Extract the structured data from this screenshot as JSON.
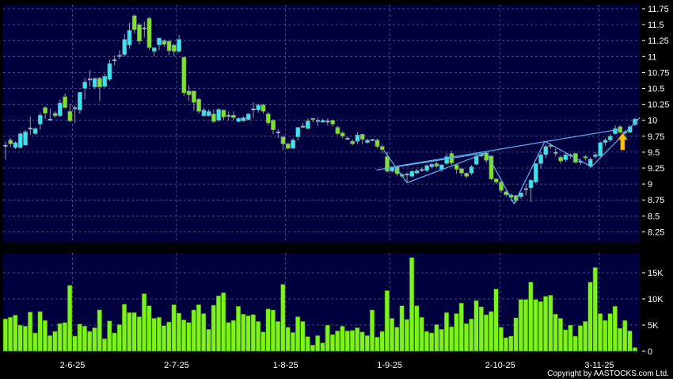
{
  "chart_data": [
    {
      "type": "candlestick",
      "title": "",
      "ylim": [
        8.1,
        11.8
      ],
      "y_ticks": [
        "11.75",
        "11.5",
        "11.25",
        "11",
        "10.75",
        "10.5",
        "10.25",
        "10",
        "9.75",
        "9.5",
        "9.25",
        "9",
        "8.75",
        "8.5",
        "8.25"
      ],
      "x_ticks": [
        {
          "label": "2-6-25",
          "index": 13.5
        },
        {
          "label": "2-7-25",
          "index": 34.5
        },
        {
          "label": "1-8-25",
          "index": 56.5
        },
        {
          "label": "1-9-25",
          "index": 77.5
        },
        {
          "label": "2-10-25",
          "index": 99.8
        },
        {
          "label": "3-11-25",
          "index": 119.8
        }
      ],
      "grid": true,
      "colors": {
        "up": "#38e4f2",
        "down": "#7ee22a",
        "background": "#00003f",
        "trendline": "#5ab4ec",
        "arrow": "#f5c518"
      },
      "ohlc_fields": [
        "open",
        "high",
        "low",
        "close"
      ],
      "ohlc": [
        [
          9.6,
          9.66,
          9.38,
          9.6
        ],
        [
          9.69,
          9.72,
          9.58,
          9.63
        ],
        [
          9.57,
          9.67,
          9.55,
          9.65
        ],
        [
          9.57,
          9.82,
          9.55,
          9.79
        ],
        [
          9.61,
          9.85,
          9.6,
          9.82
        ],
        [
          9.87,
          10.06,
          9.77,
          9.87
        ],
        [
          9.79,
          9.89,
          9.77,
          9.87
        ],
        [
          9.94,
          10.12,
          9.85,
          10.08
        ],
        [
          10.2,
          10.22,
          10.02,
          10.11
        ],
        [
          10.01,
          10.18,
          9.99,
          10.01
        ],
        [
          10.11,
          10.14,
          10.04,
          10.07
        ],
        [
          10.07,
          10.33,
          10.05,
          10.27
        ],
        [
          10.37,
          10.42,
          10.18,
          10.2
        ],
        [
          10.14,
          10.26,
          9.97,
          9.99
        ],
        [
          10.19,
          10.23,
          9.96,
          10.19
        ],
        [
          10.16,
          10.44,
          10.1,
          10.44
        ],
        [
          10.5,
          10.66,
          10.33,
          10.6
        ],
        [
          10.64,
          10.78,
          10.53,
          10.64
        ],
        [
          10.52,
          10.66,
          10.49,
          10.66
        ],
        [
          10.66,
          10.68,
          10.3,
          10.52
        ],
        [
          10.53,
          10.73,
          10.51,
          10.69
        ],
        [
          10.64,
          10.95,
          10.62,
          10.89
        ],
        [
          10.94,
          11.02,
          10.86,
          10.94
        ],
        [
          11.01,
          11.1,
          10.96,
          11.01
        ],
        [
          11.03,
          11.35,
          11.0,
          11.27
        ],
        [
          11.18,
          11.53,
          11.12,
          11.41
        ],
        [
          11.64,
          11.66,
          11.36,
          11.42
        ],
        [
          11.5,
          11.53,
          11.19,
          11.24
        ],
        [
          11.44,
          11.55,
          11.3,
          11.44
        ],
        [
          11.6,
          11.62,
          11.1,
          11.14
        ],
        [
          11.08,
          11.14,
          11.0,
          11.14
        ],
        [
          11.18,
          11.29,
          11.1,
          11.29
        ],
        [
          11.25,
          11.27,
          11.15,
          11.19
        ],
        [
          11.24,
          11.26,
          11.02,
          11.09
        ],
        [
          11.18,
          11.2,
          11.0,
          11.08
        ],
        [
          11.08,
          11.34,
          11.06,
          11.27
        ],
        [
          10.99,
          10.99,
          10.38,
          10.43
        ],
        [
          10.46,
          10.55,
          10.3,
          10.4
        ],
        [
          10.46,
          10.46,
          10.15,
          10.28
        ],
        [
          10.33,
          10.35,
          10.1,
          10.14
        ],
        [
          10.07,
          10.2,
          10.05,
          10.16
        ],
        [
          10.07,
          10.17,
          10.06,
          10.14
        ],
        [
          10.1,
          10.17,
          9.96,
          9.98
        ],
        [
          10.0,
          10.19,
          9.98,
          10.17
        ],
        [
          10.16,
          10.17,
          10.01,
          10.05
        ],
        [
          10.07,
          10.14,
          10.0,
          10.07
        ],
        [
          10.08,
          10.14,
          10.0,
          10.04
        ],
        [
          9.98,
          10.05,
          9.97,
          10.03
        ],
        [
          9.99,
          10.06,
          9.98,
          10.04
        ],
        [
          10.01,
          10.11,
          10.0,
          10.1
        ],
        [
          10.17,
          10.28,
          10.03,
          10.17
        ],
        [
          10.16,
          10.26,
          10.12,
          10.24
        ],
        [
          10.24,
          10.26,
          10.1,
          10.14
        ],
        [
          10.1,
          10.13,
          9.92,
          9.96
        ],
        [
          10.0,
          10.02,
          9.78,
          9.85
        ],
        [
          9.81,
          9.86,
          9.72,
          9.81
        ],
        [
          9.74,
          9.76,
          9.53,
          9.63
        ],
        [
          9.63,
          9.65,
          9.54,
          9.56
        ],
        [
          9.56,
          9.72,
          9.55,
          9.69
        ],
        [
          9.74,
          9.89,
          9.68,
          9.89
        ],
        [
          9.9,
          9.96,
          9.88,
          9.9
        ],
        [
          9.87,
          10.03,
          9.86,
          9.99
        ],
        [
          10.03,
          10.04,
          9.97,
          10.01
        ],
        [
          9.99,
          10.04,
          9.91,
          9.99
        ],
        [
          9.97,
          10.02,
          9.96,
          10.0
        ],
        [
          9.98,
          10.03,
          9.92,
          9.98
        ],
        [
          10.0,
          10.01,
          9.9,
          9.94
        ],
        [
          9.89,
          9.91,
          9.77,
          9.79
        ],
        [
          9.8,
          9.83,
          9.72,
          9.75
        ],
        [
          9.71,
          9.75,
          9.69,
          9.71
        ],
        [
          9.67,
          9.7,
          9.61,
          9.63
        ],
        [
          9.67,
          9.81,
          9.63,
          9.77
        ],
        [
          9.78,
          9.79,
          9.62,
          9.7
        ],
        [
          9.65,
          9.71,
          9.63,
          9.69
        ],
        [
          9.69,
          9.71,
          9.67,
          9.69
        ],
        [
          9.69,
          9.72,
          9.56,
          9.59
        ],
        [
          9.59,
          9.62,
          9.48,
          9.54
        ],
        [
          9.43,
          9.51,
          9.18,
          9.2
        ],
        [
          9.2,
          9.28,
          9.18,
          9.27
        ],
        [
          9.27,
          9.29,
          9.13,
          9.16
        ],
        [
          9.15,
          9.17,
          9.1,
          9.12
        ],
        [
          9.15,
          9.18,
          9.02,
          9.15
        ],
        [
          9.12,
          9.22,
          9.1,
          9.2
        ],
        [
          9.17,
          9.24,
          9.15,
          9.21
        ],
        [
          9.22,
          9.26,
          9.19,
          9.22
        ],
        [
          9.21,
          9.31,
          9.19,
          9.29
        ],
        [
          9.27,
          9.33,
          9.25,
          9.31
        ],
        [
          9.32,
          9.35,
          9.26,
          9.28
        ],
        [
          9.23,
          9.31,
          9.19,
          9.3
        ],
        [
          9.32,
          9.48,
          9.3,
          9.43
        ],
        [
          9.48,
          9.52,
          9.3,
          9.33
        ],
        [
          9.3,
          9.31,
          9.16,
          9.23
        ],
        [
          9.24,
          9.26,
          9.12,
          9.17
        ],
        [
          9.17,
          9.18,
          9.09,
          9.12
        ],
        [
          9.17,
          9.3,
          9.14,
          9.27
        ],
        [
          9.31,
          9.46,
          9.29,
          9.44
        ],
        [
          9.45,
          9.5,
          9.42,
          9.45
        ],
        [
          9.49,
          9.52,
          9.33,
          9.37
        ],
        [
          9.44,
          9.45,
          9.06,
          9.08
        ],
        [
          9.08,
          9.09,
          9.0,
          9.03
        ],
        [
          9.03,
          9.04,
          8.86,
          8.9
        ],
        [
          8.88,
          8.9,
          8.8,
          8.83
        ],
        [
          8.83,
          8.85,
          8.73,
          8.79
        ],
        [
          8.82,
          8.83,
          8.7,
          8.74
        ],
        [
          8.8,
          8.88,
          8.77,
          8.86
        ],
        [
          8.92,
          9.0,
          8.82,
          8.92
        ],
        [
          8.94,
          9.08,
          8.72,
          9.06
        ],
        [
          9.03,
          9.33,
          9.01,
          9.32
        ],
        [
          9.32,
          9.5,
          9.24,
          9.46
        ],
        [
          9.46,
          9.62,
          9.4,
          9.59
        ],
        [
          9.61,
          9.64,
          9.55,
          9.59
        ],
        [
          9.49,
          9.56,
          9.43,
          9.49
        ],
        [
          9.42,
          9.45,
          9.32,
          9.36
        ],
        [
          9.38,
          9.48,
          9.35,
          9.46
        ],
        [
          9.45,
          9.48,
          9.4,
          9.45
        ],
        [
          9.48,
          9.49,
          9.32,
          9.34
        ],
        [
          9.35,
          9.4,
          9.3,
          9.35
        ],
        [
          9.43,
          9.45,
          9.37,
          9.41
        ],
        [
          9.28,
          9.42,
          9.25,
          9.39
        ],
        [
          9.43,
          9.5,
          9.4,
          9.46
        ],
        [
          9.44,
          9.67,
          9.4,
          9.65
        ],
        [
          9.65,
          9.72,
          9.6,
          9.69
        ],
        [
          9.69,
          9.78,
          9.66,
          9.75
        ],
        [
          9.79,
          9.92,
          9.77,
          9.87
        ],
        [
          9.9,
          9.92,
          9.79,
          9.81
        ],
        [
          9.81,
          9.85,
          9.77,
          9.81
        ],
        [
          9.81,
          9.92,
          9.8,
          9.9
        ],
        [
          9.93,
          10.04,
          9.91,
          10.02
        ]
      ],
      "trendlines": [
        {
          "from": {
            "index": 74.8,
            "price": 9.22
          },
          "to": {
            "index": 97,
            "price": 9.49
          }
        },
        {
          "from": {
            "index": 79,
            "price": 9.28
          },
          "to": {
            "index": 124,
            "price": 9.86
          }
        },
        {
          "zigzag": [
            {
              "index": 76.3,
              "price": 9.53
            },
            {
              "index": 81,
              "price": 9.02
            },
            {
              "index": 97,
              "price": 9.49
            },
            {
              "index": 102.6,
              "price": 8.69
            },
            {
              "index": 108.8,
              "price": 9.67
            },
            {
              "index": 118.2,
              "price": 9.27
            },
            {
              "index": 128,
              "price": 10.04
            }
          ]
        }
      ],
      "annotation": {
        "type": "up-arrow",
        "index": 124.5,
        "price": 9.66
      }
    },
    {
      "type": "bar",
      "unit": "K",
      "ylim": [
        0,
        19
      ],
      "y_ticks": [
        {
          "label": "15K",
          "value": 15
        },
        {
          "label": "10K",
          "value": 10
        },
        {
          "label": "5K",
          "value": 5
        },
        {
          "label": "0",
          "value": 0
        }
      ],
      "grid": true,
      "colors": {
        "bar": "#7ef21c",
        "background": "#00003f"
      },
      "values": [
        6.2,
        6.5,
        6.9,
        5.0,
        4.8,
        7.5,
        3.5,
        7.6,
        5.9,
        3.0,
        3.8,
        5.3,
        5.5,
        12.6,
        2.9,
        5.2,
        4.8,
        3.8,
        4.5,
        7.9,
        2.4,
        5.8,
        3.5,
        5.1,
        9.0,
        7.4,
        7.4,
        6.6,
        11.0,
        8.7,
        6.3,
        6.5,
        4.9,
        5.6,
        8.9,
        7.3,
        6.0,
        5.5,
        7.9,
        8.9,
        7.2,
        4.2,
        8.8,
        10.6,
        11.2,
        5.5,
        5.9,
        8.6,
        7.1,
        6.8,
        7.0,
        5.7,
        3.7,
        8.1,
        7.9,
        5.7,
        12.8,
        4.6,
        3.6,
        6.6,
        5.7,
        2.8,
        1.2,
        3.0,
        1.6,
        5.0,
        3.2,
        3.9,
        4.8,
        3.9,
        4.0,
        4.5,
        3.7,
        3.0,
        7.9,
        2.7,
        3.8,
        11.6,
        6.3,
        4.6,
        8.7,
        6.1,
        17.9,
        8.7,
        6.5,
        3.8,
        3.5,
        5.1,
        4.2,
        7.4,
        4.7,
        7.2,
        9.2,
        5.3,
        6.2,
        9.7,
        8.5,
        7.0,
        7.6,
        11.9,
        4.6,
        2.6,
        2.9,
        6.4,
        9.9,
        9.9,
        13.2,
        9.9,
        9.5,
        10.5,
        10.7,
        7.1,
        6.3,
        4.1,
        5.0,
        2.9,
        4.9,
        5.7,
        13.2,
        16.0,
        7.2,
        5.9,
        7.2,
        8.6,
        4.4,
        5.9,
        3.9,
        0.7
      ]
    }
  ],
  "footer": {
    "copyright": "Copyright by AASTOCKS.com Ltd."
  }
}
